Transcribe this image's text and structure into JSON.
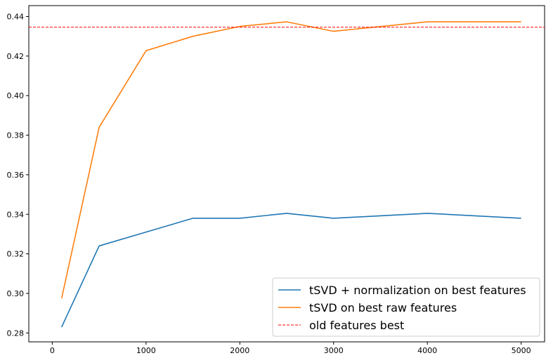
{
  "chart_data": {
    "type": "line",
    "title": "",
    "xlabel": "",
    "ylabel": "",
    "xlim": [
      -250,
      5250
    ],
    "ylim": [
      0.2755,
      0.4455
    ],
    "x_ticks": [
      0,
      1000,
      2000,
      3000,
      4000,
      5000
    ],
    "x_tick_labels": [
      "0",
      "1000",
      "2000",
      "3000",
      "4000",
      "5000"
    ],
    "y_ticks": [
      0.28,
      0.3,
      0.32,
      0.34,
      0.36,
      0.38,
      0.4,
      0.42,
      0.44
    ],
    "y_tick_labels": [
      "0.28",
      "0.30",
      "0.32",
      "0.34",
      "0.36",
      "0.38",
      "0.40",
      "0.42",
      "0.44"
    ],
    "grid": false,
    "legend_position": "lower-right",
    "series": [
      {
        "name": "tSVD + normalization on best features",
        "color": "#1f77b4",
        "style": "solid",
        "x": [
          100,
          500,
          1000,
          1500,
          2000,
          2500,
          3000,
          4000,
          5000
        ],
        "y": [
          0.283,
          0.324,
          0.331,
          0.338,
          0.338,
          0.3405,
          0.338,
          0.3405,
          0.338
        ]
      },
      {
        "name": "tSVD on best raw features",
        "color": "#ff7f0e",
        "style": "solid",
        "x": [
          100,
          500,
          1000,
          1500,
          2000,
          2500,
          3000,
          4000,
          5000
        ],
        "y": [
          0.2975,
          0.384,
          0.4227,
          0.43,
          0.435,
          0.4373,
          0.4325,
          0.4373,
          0.4373
        ]
      },
      {
        "name": "old features best",
        "color": "#ff0000",
        "style": "dashed",
        "hline": 0.4346
      }
    ]
  }
}
